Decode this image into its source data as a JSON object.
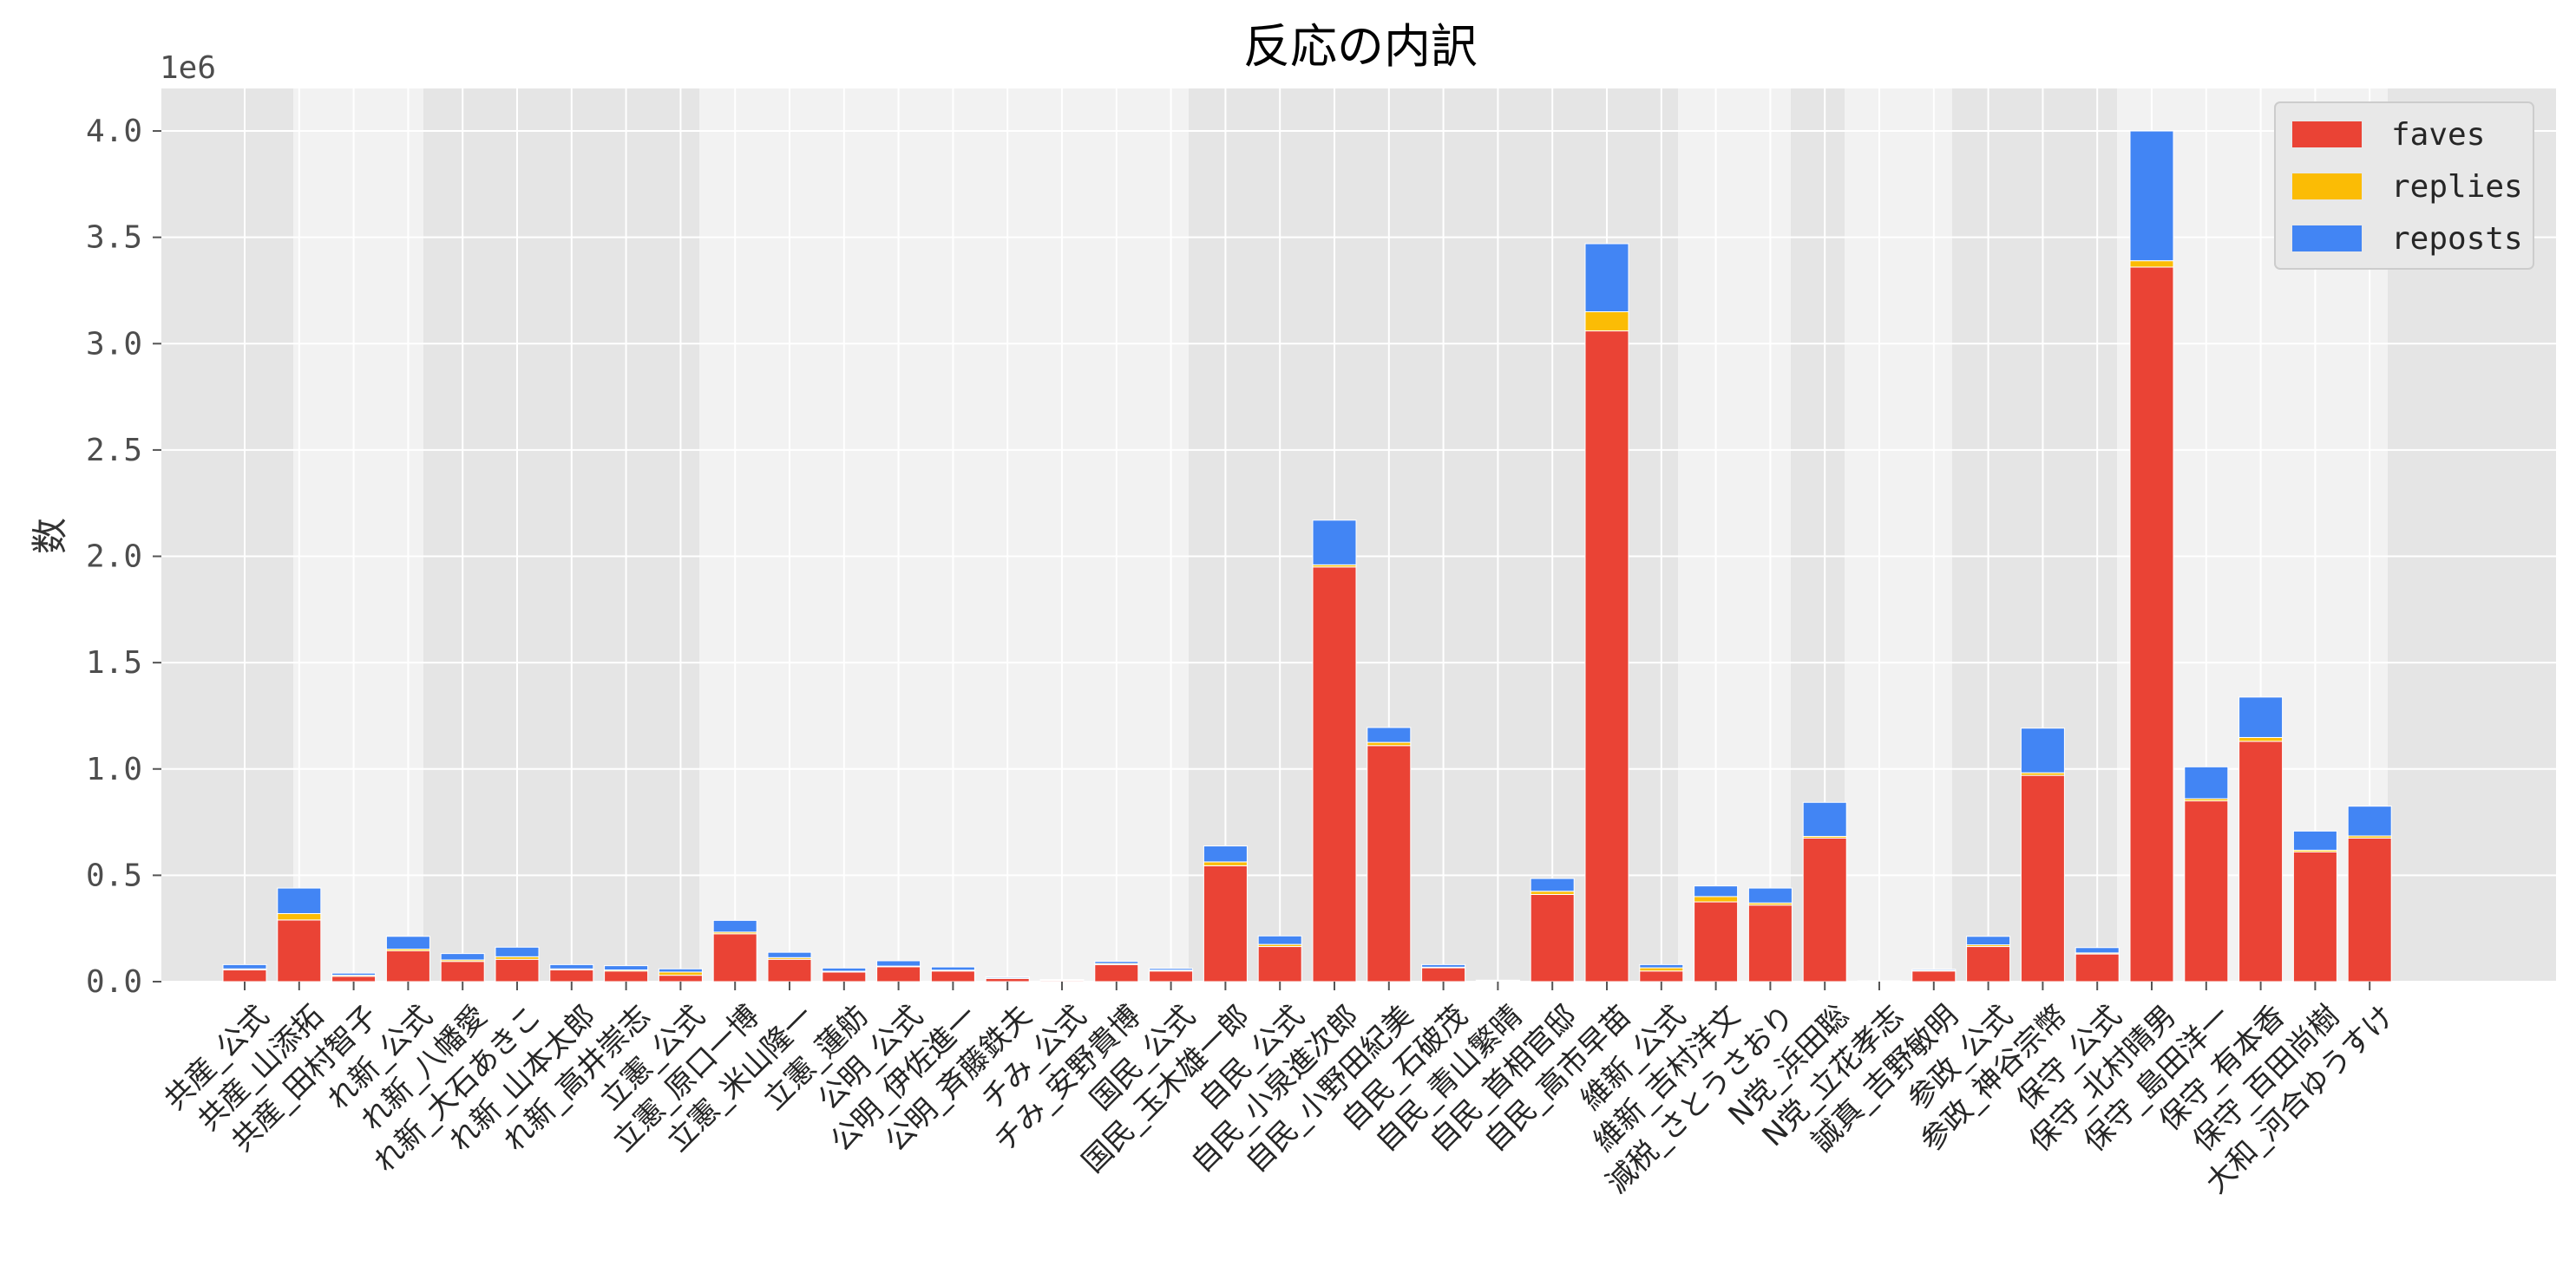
{
  "chart_data": {
    "type": "bar",
    "stacked": true,
    "title": "反応の内訳",
    "ylabel": "数",
    "xlabel": "",
    "offset_label": "1e6",
    "ylim": [
      0,
      4.2
    ],
    "yticks": [
      0.0,
      0.5,
      1.0,
      1.5,
      2.0,
      2.5,
      3.0,
      3.5,
      4.0
    ],
    "ytick_labels": [
      "0.0",
      "0.5",
      "1.0",
      "1.5",
      "2.0",
      "2.5",
      "3.0",
      "3.5",
      "4.0"
    ],
    "grid": true,
    "legend_position": "top-right",
    "categories": [
      "共産_公式",
      "共産_山添拓",
      "共産_田村智子",
      "れ新_公式",
      "れ新_八幡愛",
      "れ新_大石あきこ",
      "れ新_山本太郎",
      "れ新_高井崇志",
      "立憲_公式",
      "立憲_原口一博",
      "立憲_米山隆一",
      "立憲_蓮舫",
      "公明_公式",
      "公明_伊佐進一",
      "公明_斉藤鉄夫",
      "チみ_公式",
      "チみ_安野貴博",
      "国民_公式",
      "国民_玉木雄一郎",
      "自民_公式",
      "自民_小泉進次郎",
      "自民_小野田紀美",
      "自民_石破茂",
      "自民_青山繁晴",
      "自民_首相官邸",
      "自民_高市早苗",
      "維新_公式",
      "維新_吉村洋文",
      "減税_さとうさおり",
      "N党_浜田聡",
      "N党_立花孝志",
      "誠真_吉野敏明",
      "参政_公式",
      "参政_神谷宗幣",
      "保守_公式",
      "保守_北村晴男",
      "保守_島田洋一",
      "保守_有本香",
      "保守_百田尚樹",
      "大和_河合ゆうすけ"
    ],
    "series": [
      {
        "name": "faves",
        "color": "#ea4335",
        "values": [
          0.055,
          0.29,
          0.025,
          0.145,
          0.095,
          0.105,
          0.055,
          0.05,
          0.03,
          0.225,
          0.105,
          0.045,
          0.07,
          0.05,
          0.015,
          0.005,
          0.08,
          0.05,
          0.545,
          0.165,
          1.95,
          1.11,
          0.065,
          0.004,
          0.41,
          3.06,
          0.05,
          0.375,
          0.36,
          0.675,
          0.002,
          0.05,
          0.165,
          0.97,
          0.13,
          3.36,
          0.85,
          1.13,
          0.61,
          0.675
        ]
      },
      {
        "name": "replies",
        "color": "#fbbc05",
        "values": [
          0.005,
          0.03,
          0.005,
          0.008,
          0.007,
          0.012,
          0.005,
          0.005,
          0.015,
          0.008,
          0.008,
          0.004,
          0.003,
          0.004,
          0.002,
          0.001,
          0.005,
          0.004,
          0.018,
          0.01,
          0.01,
          0.015,
          0.003,
          0.001,
          0.015,
          0.09,
          0.015,
          0.025,
          0.01,
          0.008,
          0.001,
          0.003,
          0.008,
          0.012,
          0.005,
          0.03,
          0.01,
          0.018,
          0.008,
          0.01
        ]
      },
      {
        "name": "reposts",
        "color": "#4285f4",
        "values": [
          0.02,
          0.12,
          0.01,
          0.06,
          0.03,
          0.045,
          0.02,
          0.02,
          0.015,
          0.055,
          0.025,
          0.015,
          0.025,
          0.015,
          0.005,
          0.004,
          0.01,
          0.008,
          0.075,
          0.04,
          0.21,
          0.07,
          0.012,
          0.002,
          0.06,
          0.32,
          0.015,
          0.05,
          0.07,
          0.16,
          0.001,
          0.005,
          0.04,
          0.21,
          0.025,
          0.61,
          0.15,
          0.19,
          0.09,
          0.14
        ]
      }
    ]
  }
}
